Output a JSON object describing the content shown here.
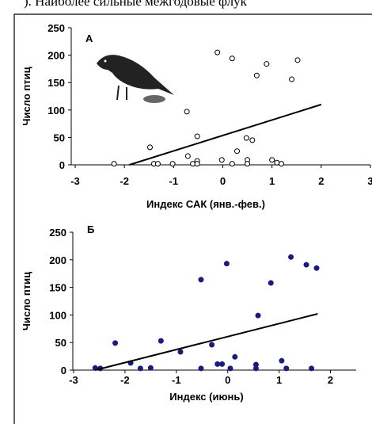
{
  "page_text": "). Наиболее сильные межгодовые флук",
  "chart_data": [
    {
      "type": "scatter",
      "panel_label": "А",
      "xlabel": "Индекс САК (янв.-фев.)",
      "ylabel": "Число птиц",
      "marker": "open",
      "color": "#000000",
      "xlim": [
        -3,
        3
      ],
      "ylim": [
        0,
        250
      ],
      "xticks": [
        -3,
        -2,
        -1,
        0,
        1,
        2,
        3
      ],
      "yticks": [
        0,
        50,
        100,
        150,
        200,
        250
      ],
      "x": [
        -2.21,
        -1.48,
        -1.4,
        -1.32,
        -1.02,
        -0.73,
        -0.71,
        -0.61,
        -0.52,
        -0.52,
        -0.52,
        -0.11,
        -0.02,
        0.19,
        0.19,
        0.29,
        0.48,
        0.6,
        0.5,
        0.5,
        0.69,
        0.89,
        1.0,
        1.1,
        1.19,
        1.4,
        1.52
      ],
      "y": [
        2,
        32,
        2,
        2,
        2,
        97,
        16,
        2,
        7,
        2,
        52,
        205,
        9,
        194,
        2,
        25,
        49,
        45,
        9,
        2,
        163,
        184,
        9,
        4,
        2,
        156,
        191
      ],
      "trend_line": {
        "x": [
          -1.9,
          2
        ],
        "y": [
          0,
          110
        ]
      }
    },
    {
      "type": "scatter",
      "panel_label": "Б",
      "xlabel": "Индекс (июнь)",
      "ylabel": "Число птиц",
      "marker": "filled",
      "color": "#1a1a80",
      "xlim": [
        -3,
        2.5
      ],
      "ylim": [
        0,
        250
      ],
      "xticks": [
        -3,
        -2,
        -1,
        0,
        1,
        2
      ],
      "yticks": [
        0,
        50,
        100,
        150,
        200,
        250
      ],
      "x": [
        -2.58,
        -2.48,
        -2.19,
        -1.89,
        -1.7,
        -1.5,
        -1.3,
        -0.92,
        -0.52,
        -0.52,
        -0.31,
        -0.2,
        -0.11,
        -0.02,
        0.05,
        0.14,
        0.59,
        0.55,
        0.55,
        0.84,
        1.05,
        1.14,
        1.23,
        1.53,
        1.63,
        1.73
      ],
      "y": [
        4,
        3,
        49,
        13,
        3,
        4,
        53,
        33,
        164,
        3,
        46,
        11,
        11,
        193,
        3,
        24,
        99,
        10,
        3,
        158,
        17,
        3,
        205,
        191,
        3,
        185
      ],
      "trend_line": {
        "x": [
          -2.58,
          1.75
        ],
        "y": [
          0,
          102
        ]
      }
    }
  ]
}
